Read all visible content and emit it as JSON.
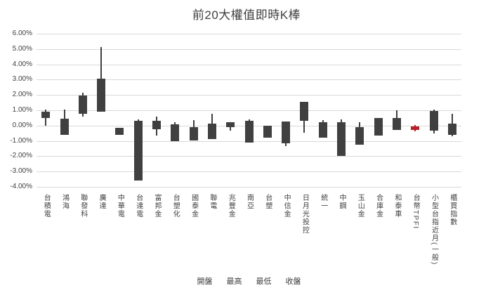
{
  "title": "前20大權值即時K棒",
  "legend": {
    "items": [
      "開盤",
      "最高",
      "最低",
      "收盤"
    ]
  },
  "y_axis": {
    "tick_labels": [
      "6.00%",
      "5.00%",
      "4.00%",
      "3.00%",
      "2.00%",
      "1.00%",
      "0.00%",
      "-1.00%",
      "-2.00%",
      "-3.00%",
      "-4.00%"
    ],
    "max": 6,
    "min": -4,
    "step": 1
  },
  "colors": {
    "down_candle": "#404040",
    "up_candle": "#b82025",
    "gridline": "#d9d9d9",
    "text": "#404040",
    "background": "#ffffff"
  },
  "chart_data": {
    "type": "candlestick",
    "title": "前20大權值即時K棒",
    "unit": "%",
    "ylim": [
      -4,
      6
    ],
    "grid": true,
    "legend_position": "bottom",
    "categories": [
      "台積電",
      "鴻海",
      "聯發科",
      "廣達",
      "中華電",
      "台達電",
      "富邦金",
      "台塑化",
      "國泰金",
      "聯電",
      "兆豐金",
      "南亞",
      "台塑",
      "中信金",
      "日月光投控",
      "統一",
      "中鋼",
      "玉山金",
      "合庫金",
      "和泰車",
      "台幣TPFI",
      "小型台指近月(一般)",
      "櫃買指數"
    ],
    "series": [
      {
        "name": "開盤",
        "values": [
          0.9,
          0.45,
          1.95,
          3.05,
          -0.15,
          0.3,
          0.3,
          0.1,
          -0.1,
          0.15,
          0.2,
          0.3,
          0.0,
          0.25,
          1.55,
          0.2,
          0.2,
          -0.1,
          0.5,
          0.5,
          -0.3,
          0.95,
          0.15
        ]
      },
      {
        "name": "最高",
        "values": [
          1.05,
          1.05,
          2.15,
          5.15,
          -0.15,
          0.4,
          0.6,
          0.2,
          0.35,
          0.75,
          0.2,
          0.4,
          0.0,
          0.25,
          1.55,
          0.35,
          0.4,
          0.2,
          0.5,
          1.0,
          0.05,
          1.05,
          0.75
        ]
      },
      {
        "name": "最低",
        "values": [
          0.0,
          -0.6,
          0.6,
          0.9,
          -0.6,
          -3.6,
          -0.65,
          -1.0,
          -0.95,
          -0.9,
          -0.35,
          -1.1,
          -0.8,
          -1.35,
          -0.45,
          -0.8,
          -2.0,
          -1.25,
          -0.65,
          -0.3,
          -0.4,
          -0.5,
          -0.7
        ]
      },
      {
        "name": "收盤",
        "values": [
          0.5,
          -0.6,
          0.75,
          0.9,
          -0.6,
          -3.6,
          -0.25,
          -1.0,
          -0.95,
          -0.9,
          -0.1,
          -1.1,
          -0.8,
          -1.15,
          0.3,
          -0.8,
          -2.0,
          -1.25,
          -0.65,
          -0.3,
          -0.05,
          -0.35,
          -0.6
        ]
      }
    ]
  }
}
